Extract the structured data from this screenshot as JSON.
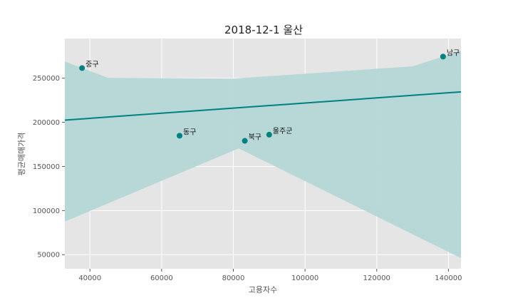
{
  "chart_data": {
    "type": "scatter",
    "title": "2018-12-1 울산",
    "xlabel": "고용자수",
    "ylabel": "평균매매가격",
    "xlim": [
      33000,
      143500
    ],
    "ylim": [
      34000,
      295000
    ],
    "xticks": [
      40000,
      60000,
      80000,
      100000,
      120000,
      140000
    ],
    "yticks": [
      50000,
      100000,
      150000,
      200000,
      250000
    ],
    "grid": true,
    "legend": "none",
    "point_color": "#008080",
    "line_color": "#008080",
    "band_color": "#b4d7d6",
    "background_color": "#e5e5e5",
    "points": [
      {
        "label": "중구",
        "x": 37800,
        "y": 261500
      },
      {
        "label": "동구",
        "x": 65000,
        "y": 184800
      },
      {
        "label": "북구",
        "x": 83200,
        "y": 179000
      },
      {
        "label": "울주군",
        "x": 90000,
        "y": 186000
      },
      {
        "label": "남구",
        "x": 138500,
        "y": 274500
      }
    ],
    "regression": {
      "x": [
        33000,
        143500
      ],
      "y": [
        202500,
        234500
      ]
    },
    "confidence_band": {
      "upper": [
        [
          33000,
          269000
        ],
        [
          45000,
          250500
        ],
        [
          80000,
          249500
        ],
        [
          130000,
          263500
        ],
        [
          143500,
          281000
        ]
      ],
      "lower": [
        [
          33000,
          87500
        ],
        [
          81500,
          170500
        ],
        [
          143500,
          46000
        ]
      ]
    }
  }
}
